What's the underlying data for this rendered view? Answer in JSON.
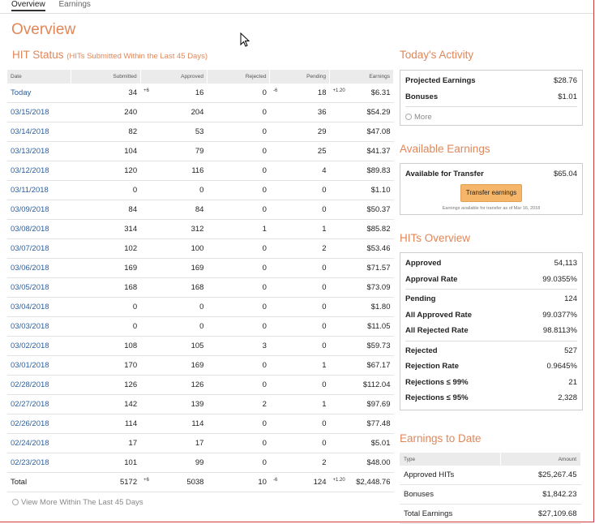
{
  "tabs": [
    "Overview",
    "Earnings"
  ],
  "page_title": "Overview",
  "hit_status": {
    "title": "HIT Status",
    "subtitle": "(HITs Submitted Within the Last 45 Days)",
    "columns": [
      "Date",
      "Submitted",
      "Approved",
      "Rejected",
      "Pending",
      "Earnings"
    ],
    "rows": [
      {
        "date": "Today",
        "submitted": "34",
        "approved": "16",
        "rejected": "0",
        "pending": "18",
        "earnings": "$6.31",
        "d_approved": "+6",
        "d_pending": "-6",
        "d_earnings": "+1.20"
      },
      {
        "date": "03/15/2018",
        "submitted": "240",
        "approved": "204",
        "rejected": "0",
        "pending": "36",
        "earnings": "$54.29"
      },
      {
        "date": "03/14/2018",
        "submitted": "82",
        "approved": "53",
        "rejected": "0",
        "pending": "29",
        "earnings": "$47.08"
      },
      {
        "date": "03/13/2018",
        "submitted": "104",
        "approved": "79",
        "rejected": "0",
        "pending": "25",
        "earnings": "$41.37"
      },
      {
        "date": "03/12/2018",
        "submitted": "120",
        "approved": "116",
        "rejected": "0",
        "pending": "4",
        "earnings": "$89.83"
      },
      {
        "date": "03/11/2018",
        "submitted": "0",
        "approved": "0",
        "rejected": "0",
        "pending": "0",
        "earnings": "$1.10"
      },
      {
        "date": "03/09/2018",
        "submitted": "84",
        "approved": "84",
        "rejected": "0",
        "pending": "0",
        "earnings": "$50.37"
      },
      {
        "date": "03/08/2018",
        "submitted": "314",
        "approved": "312",
        "rejected": "1",
        "pending": "1",
        "earnings": "$85.82"
      },
      {
        "date": "03/07/2018",
        "submitted": "102",
        "approved": "100",
        "rejected": "0",
        "pending": "2",
        "earnings": "$53.46"
      },
      {
        "date": "03/06/2018",
        "submitted": "169",
        "approved": "169",
        "rejected": "0",
        "pending": "0",
        "earnings": "$71.57"
      },
      {
        "date": "03/05/2018",
        "submitted": "168",
        "approved": "168",
        "rejected": "0",
        "pending": "0",
        "earnings": "$73.09"
      },
      {
        "date": "03/04/2018",
        "submitted": "0",
        "approved": "0",
        "rejected": "0",
        "pending": "0",
        "earnings": "$1.80"
      },
      {
        "date": "03/03/2018",
        "submitted": "0",
        "approved": "0",
        "rejected": "0",
        "pending": "0",
        "earnings": "$11.05"
      },
      {
        "date": "03/02/2018",
        "submitted": "108",
        "approved": "105",
        "rejected": "3",
        "pending": "0",
        "earnings": "$59.73"
      },
      {
        "date": "03/01/2018",
        "submitted": "170",
        "approved": "169",
        "rejected": "0",
        "pending": "1",
        "earnings": "$67.17"
      },
      {
        "date": "02/28/2018",
        "submitted": "126",
        "approved": "126",
        "rejected": "0",
        "pending": "0",
        "earnings": "$112.04"
      },
      {
        "date": "02/27/2018",
        "submitted": "142",
        "approved": "139",
        "rejected": "2",
        "pending": "1",
        "earnings": "$97.69"
      },
      {
        "date": "02/26/2018",
        "submitted": "114",
        "approved": "114",
        "rejected": "0",
        "pending": "0",
        "earnings": "$77.48"
      },
      {
        "date": "02/24/2018",
        "submitted": "17",
        "approved": "17",
        "rejected": "0",
        "pending": "0",
        "earnings": "$5.01"
      },
      {
        "date": "02/23/2018",
        "submitted": "101",
        "approved": "99",
        "rejected": "0",
        "pending": "2",
        "earnings": "$48.00"
      }
    ],
    "total": {
      "date": "Total",
      "submitted": "5172",
      "approved": "5038",
      "rejected": "10",
      "pending": "124",
      "earnings": "$2,448.76",
      "d_approved": "+6",
      "d_pending": "-6",
      "d_earnings": "+1.20"
    },
    "view_more": "View More Within The Last 45 Days"
  },
  "todays_activity": {
    "title": "Today's Activity",
    "projected_label": "Projected Earnings",
    "projected_value": "$28.76",
    "bonuses_label": "Bonuses",
    "bonuses_value": "$1.01",
    "more": "More"
  },
  "available_earnings": {
    "title": "Available Earnings",
    "label": "Available for Transfer",
    "value": "$65.04",
    "button": "Transfer earnings",
    "note": "Earnings available for transfer as of Mar 16, 2018"
  },
  "hits_overview": {
    "title": "HITs Overview",
    "approved_label": "Approved",
    "approved_value": "54,113",
    "approval_rate_label": "Approval Rate",
    "approval_rate_value": "99.0355%",
    "pending_label": "Pending",
    "pending_value": "124",
    "all_approved_label": "All Approved Rate",
    "all_approved_value": "99.0377%",
    "all_rejected_label": "All Rejected Rate",
    "all_rejected_value": "98.8113%",
    "rejected_label": "Rejected",
    "rejected_value": "527",
    "rejection_rate_label": "Rejection Rate",
    "rejection_rate_value": "0.9645%",
    "rej99_label": "Rejections ≤ 99%",
    "rej99_value": "21",
    "rej95_label": "Rejections ≤ 95%",
    "rej95_value": "2,328"
  },
  "earnings_to_date": {
    "title": "Earnings to Date",
    "col_type": "Type",
    "col_amount": "Amount",
    "rows": [
      {
        "type": "Approved HITs",
        "amount": "$25,267.45"
      },
      {
        "type": "Bonuses",
        "amount": "$1,842.23"
      },
      {
        "type": "Total Earnings",
        "amount": "$27,109.68"
      }
    ]
  }
}
